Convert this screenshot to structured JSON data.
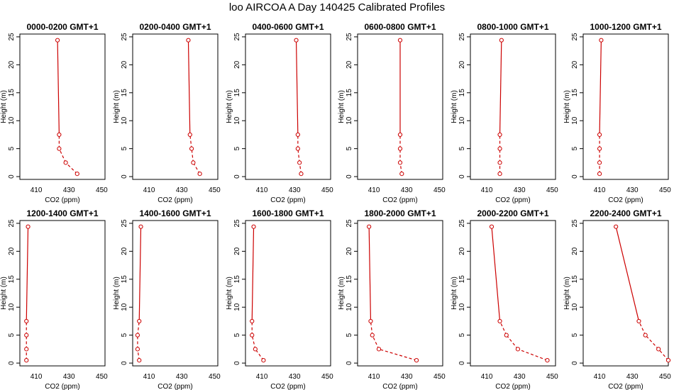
{
  "title": "loo AIRCOA A  Day 140425  Calibrated Profiles",
  "chart_data": {
    "type": "line",
    "xlabel": "CO2 (ppm)",
    "ylabel": "Height (m)",
    "series_color": "#cc0000",
    "xticks": [
      410,
      430,
      450
    ],
    "yticks": [
      0,
      5,
      10,
      15,
      20,
      25
    ],
    "ylim": [
      -0.5,
      25.5
    ],
    "panels": [
      {
        "title": "0000-0200 GMT+1",
        "xlim": [
          400,
          452
        ],
        "heights": [
          0.5,
          2.5,
          5,
          7.5,
          24.4
        ],
        "co2": [
          435,
          428,
          424,
          424,
          423
        ]
      },
      {
        "title": "0200-0400 GMT+1",
        "xlim": [
          400,
          452
        ],
        "heights": [
          0.5,
          2.5,
          5,
          7.5,
          24.4
        ],
        "co2": [
          441,
          437,
          436,
          435,
          434
        ]
      },
      {
        "title": "0400-0600 GMT+1",
        "xlim": [
          400,
          452
        ],
        "heights": [
          0.5,
          2.5,
          5,
          7.5,
          24.4
        ],
        "co2": [
          434,
          433,
          432,
          432,
          431
        ]
      },
      {
        "title": "0600-0800 GMT+1",
        "xlim": [
          400,
          452
        ],
        "heights": [
          0.5,
          2.5,
          5,
          7.5,
          24.4
        ],
        "co2": [
          427,
          426,
          426,
          426,
          426
        ]
      },
      {
        "title": "0800-1000 GMT+1",
        "xlim": [
          400,
          452
        ],
        "heights": [
          0.5,
          2.5,
          5,
          7.5,
          24.4
        ],
        "co2": [
          418,
          418,
          418,
          418,
          419
        ]
      },
      {
        "title": "1000-1200 GMT+1",
        "xlim": [
          400,
          452
        ],
        "heights": [
          0.5,
          2.5,
          5,
          7.5,
          24.4
        ],
        "co2": [
          410,
          410,
          410,
          410,
          411
        ]
      },
      {
        "title": "1200-1400 GMT+1",
        "xlim": [
          400,
          452
        ],
        "heights": [
          0.5,
          2.5,
          5,
          7.5,
          24.4
        ],
        "co2": [
          404,
          404,
          404,
          404,
          405
        ]
      },
      {
        "title": "1400-1600 GMT+1",
        "xlim": [
          400,
          452
        ],
        "heights": [
          0.5,
          2.5,
          5,
          7.5,
          24.4
        ],
        "co2": [
          404,
          403,
          403,
          404,
          405
        ]
      },
      {
        "title": "1600-1800 GMT+1",
        "xlim": [
          400,
          452
        ],
        "heights": [
          0.5,
          2.5,
          5,
          7.5,
          24.4
        ],
        "co2": [
          411,
          406,
          404,
          404,
          405
        ]
      },
      {
        "title": "1800-2000 GMT+1",
        "xlim": [
          400,
          452
        ],
        "heights": [
          0.5,
          2.5,
          5,
          7.5,
          24.4
        ],
        "co2": [
          436,
          413,
          409,
          408,
          407
        ]
      },
      {
        "title": "2000-2200 GMT+1",
        "xlim": [
          400,
          452
        ],
        "heights": [
          0.5,
          2.5,
          5,
          7.5,
          24.4
        ],
        "co2": [
          447,
          429,
          422,
          418,
          413
        ]
      },
      {
        "title": "2200-2400 GMT+1",
        "xlim": [
          400,
          452
        ],
        "heights": [
          0.5,
          2.5,
          5,
          7.5,
          24.4
        ],
        "co2": [
          452,
          446,
          438,
          434,
          420
        ]
      }
    ]
  }
}
